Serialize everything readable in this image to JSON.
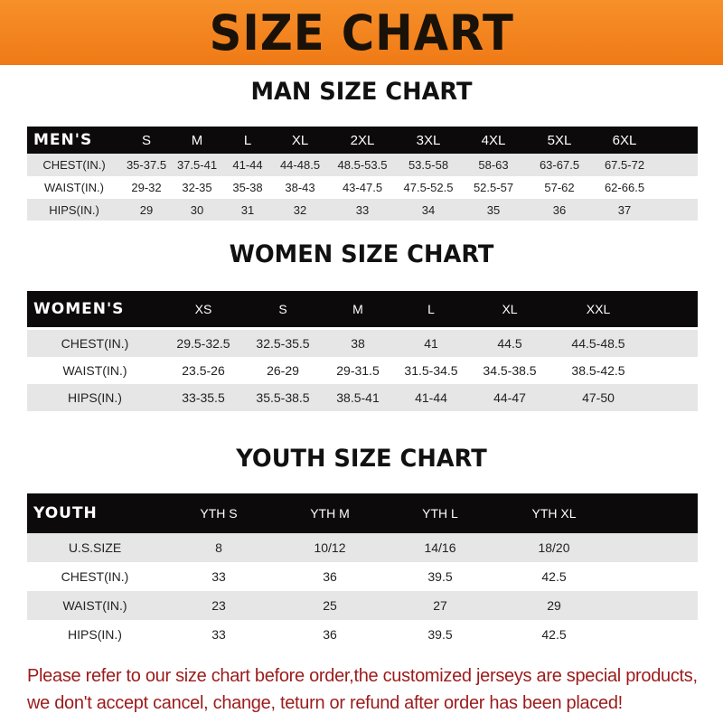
{
  "banner": {
    "title": "SIZE CHART"
  },
  "men": {
    "title": "MAN SIZE CHART",
    "header": [
      "MEN'S",
      "S",
      "M",
      "L",
      "XL",
      "2XL",
      "3XL",
      "4XL",
      "5XL",
      "6XL"
    ],
    "rows": [
      [
        "CHEST(IN.)",
        "35-37.5",
        "37.5-41",
        "41-44",
        "44-48.5",
        "48.5-53.5",
        "53.5-58",
        "58-63",
        "63-67.5",
        "67.5-72"
      ],
      [
        "WAIST(IN.)",
        "29-32",
        "32-35",
        "35-38",
        "38-43",
        "43-47.5",
        "47.5-52.5",
        "52.5-57",
        "57-62",
        "62-66.5"
      ],
      [
        "HIPS(IN.)",
        "29",
        "30",
        "31",
        "32",
        "33",
        "34",
        "35",
        "36",
        "37"
      ]
    ]
  },
  "women": {
    "title": "WOMEN SIZE CHART",
    "header": [
      "WOMEN'S",
      "XS",
      "S",
      "M",
      "L",
      "XL",
      "XXL"
    ],
    "rows": [
      [
        "CHEST(IN.)",
        "29.5-32.5",
        "32.5-35.5",
        "38",
        "41",
        "44.5",
        "44.5-48.5"
      ],
      [
        "WAIST(IN.)",
        "23.5-26",
        "26-29",
        "29-31.5",
        "31.5-34.5",
        "34.5-38.5",
        "38.5-42.5"
      ],
      [
        "HIPS(IN.)",
        "33-35.5",
        "35.5-38.5",
        "38.5-41",
        "41-44",
        "44-47",
        "47-50"
      ]
    ]
  },
  "youth": {
    "title": "YOUTH SIZE CHART",
    "header": [
      "YOUTH",
      "YTH S",
      "YTH M",
      "YTH L",
      "YTH XL"
    ],
    "rows": [
      [
        "U.S.SIZE",
        "8",
        "10/12",
        "14/16",
        "18/20"
      ],
      [
        "CHEST(IN.)",
        "33",
        "36",
        "39.5",
        "42.5"
      ],
      [
        "WAIST(IN.)",
        "23",
        "25",
        "27",
        "29"
      ],
      [
        "HIPS(IN.)",
        "33",
        "36",
        "39.5",
        "42.5"
      ]
    ]
  },
  "note": {
    "line1": "Please refer to our size chart before order,the customized jerseys are special products,",
    "line2": "we don't accept cancel, change, teturn or refund after order has been placed!"
  },
  "colors": {
    "banner": "#f08520",
    "header": "#0c0a0a",
    "stripe": "#e6e6e6",
    "note": "#9b1b1b"
  }
}
